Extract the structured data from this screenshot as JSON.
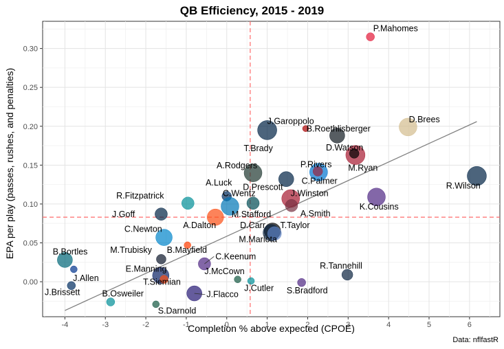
{
  "title": "QB Efficiency, 2015 - 2019",
  "caption": "Data: nflfastR",
  "chart_data": {
    "type": "scatter",
    "title": "QB Efficiency, 2015 - 2019",
    "xlabel": "Completion % above expected (CPOE)",
    "ylabel": "EPA per play (passes, rushes, and penalties)",
    "xlim": [
      -4.55,
      6.75
    ],
    "ylim": [
      -0.045,
      0.335
    ],
    "x_ticks": [
      -4,
      -3,
      -2,
      -1,
      0,
      1,
      2,
      3,
      4,
      5,
      6
    ],
    "y_ticks": [
      0.0,
      0.05,
      0.1,
      0.15,
      0.2,
      0.25,
      0.3
    ],
    "x_tick_labels": [
      "-4",
      "-3",
      "-2",
      "-1",
      "0",
      "1",
      "2",
      "3",
      "4",
      "5",
      "6"
    ],
    "y_tick_labels": [
      "0.00",
      "0.05",
      "0.10",
      "0.15",
      "0.20",
      "0.25",
      "0.30"
    ],
    "grid": true,
    "reference_lines": {
      "x_mean": 0.58,
      "y_mean": 0.083,
      "color": "#ff6b6b"
    },
    "trend_line": {
      "x": [
        -4.0,
        6.18
      ],
      "y": [
        -0.037,
        0.206
      ],
      "color": "#808080"
    },
    "points": [
      {
        "name": "P.Mahomes",
        "x": 3.55,
        "y": 0.315,
        "size": 6,
        "color": "#e31837",
        "label_pos": [
          3.62,
          0.322
        ],
        "anchor": "start"
      },
      {
        "name": "D.Brees",
        "x": 4.48,
        "y": 0.199,
        "size": 13,
        "color": "#d3bc8d",
        "label_pos": [
          4.5,
          0.205
        ],
        "anchor": "start"
      },
      {
        "name": "J.Garoppolo",
        "x": 1.95,
        "y": 0.197,
        "size": 4.5,
        "color": "#aa0000",
        "label_pos": [
          1.0,
          0.203
        ],
        "anchor": "start"
      },
      {
        "name": "T.Brady",
        "x": 1.0,
        "y": 0.195,
        "size": 14,
        "color": "#002244",
        "label_pos": [
          0.78,
          0.168
        ],
        "anchor": "middle"
      },
      {
        "name": "B.Roethlisberger",
        "x": 2.73,
        "y": 0.188,
        "size": 11,
        "color": "#101820",
        "label_pos": [
          1.97,
          0.193
        ],
        "anchor": "start"
      },
      {
        "name": "D.Watson",
        "x": 3.18,
        "y": 0.163,
        "size": 14,
        "color": "#a71930",
        "label_pos": [
          2.45,
          0.169
        ],
        "anchor": "start"
      },
      {
        "name": "M.Ryan",
        "x": 3.15,
        "y": 0.165,
        "size": 7,
        "color": "#000000",
        "label_pos": [
          3.0,
          0.143
        ],
        "anchor": "start"
      },
      {
        "name": "P.Rivers",
        "x": 2.27,
        "y": 0.141,
        "size": 13,
        "color": "#0073cf",
        "label_pos": [
          1.82,
          0.147
        ],
        "anchor": "start"
      },
      {
        "name": "C.Palmer",
        "x": 2.25,
        "y": 0.142,
        "size": 7,
        "color": "#97233f",
        "label_pos": [
          1.85,
          0.126
        ],
        "anchor": "start"
      },
      {
        "name": "A.Rodgers",
        "x": 0.65,
        "y": 0.14,
        "size": 13,
        "color": "#203731",
        "label_pos": [
          -0.25,
          0.146
        ],
        "anchor": "start"
      },
      {
        "name": "D.Prescott",
        "x": 1.47,
        "y": 0.132,
        "size": 11,
        "color": "#002244",
        "label_pos": [
          0.4,
          0.118
        ],
        "anchor": "start"
      },
      {
        "name": "R.Wilson",
        "x": 6.18,
        "y": 0.136,
        "size": 14,
        "color": "#002244",
        "label_pos": [
          5.42,
          0.12
        ],
        "anchor": "start"
      },
      {
        "name": "K.Cousins",
        "x": 3.7,
        "y": 0.109,
        "size": 13,
        "color": "#4f2683",
        "label_pos": [
          3.28,
          0.093
        ],
        "anchor": "start"
      },
      {
        "name": "J.Winston",
        "x": 1.58,
        "y": 0.107,
        "size": 13,
        "color": "#a71930",
        "label_pos": [
          1.58,
          0.11
        ],
        "anchor": "start"
      },
      {
        "name": "A.Smith",
        "x": 1.6,
        "y": 0.098,
        "size": 9,
        "color": "#773141",
        "label_pos": [
          1.82,
          0.084
        ],
        "anchor": "start"
      },
      {
        "name": "C.Wentz",
        "x": 0.65,
        "y": 0.101,
        "size": 9,
        "color": "#004c54",
        "label_pos": [
          -0.1,
          0.11
        ],
        "anchor": "start"
      },
      {
        "name": "A.Luck",
        "x": 0.0,
        "y": 0.11,
        "size": 7,
        "color": "#002c5f",
        "label_pos": [
          -0.52,
          0.124
        ],
        "anchor": "start"
      },
      {
        "name": "M.Stafford",
        "x": 0.08,
        "y": 0.097,
        "size": 13,
        "color": "#0076b6",
        "label_pos": [
          0.12,
          0.083
        ],
        "anchor": "start"
      },
      {
        "name": "A.Dalton",
        "x": -0.28,
        "y": 0.083,
        "size": 12,
        "color": "#fb4f14",
        "label_pos": [
          -1.08,
          0.069
        ],
        "anchor": "start"
      },
      {
        "name": "R.Fitzpatrick",
        "x": -0.96,
        "y": 0.101,
        "size": 9,
        "color": "#008e97",
        "label_pos": [
          -2.73,
          0.107
        ],
        "anchor": "start"
      },
      {
        "name": "J.Goff",
        "x": -1.62,
        "y": 0.087,
        "size": 9,
        "color": "#002244",
        "label_pos": [
          -2.27,
          0.083
        ],
        "anchor": "end"
      },
      {
        "name": "D.Carr",
        "x": 1.13,
        "y": 0.065,
        "size": 12,
        "color": "#000000",
        "label_pos": [
          0.33,
          0.069
        ],
        "anchor": "start"
      },
      {
        "name": "M.Mariota",
        "x": 1.1,
        "y": 0.063,
        "size": 12,
        "color": "#0c2340",
        "label_pos": [
          0.3,
          0.051
        ],
        "anchor": "start"
      },
      {
        "name": "T.Taylor",
        "x": 1.18,
        "y": 0.062,
        "size": 10,
        "color": "#5c82c3",
        "label_pos": [
          1.32,
          0.069
        ],
        "anchor": "start"
      },
      {
        "name": "C.Newton",
        "x": -1.55,
        "y": 0.057,
        "size": 12,
        "color": "#0085ca",
        "label_pos": [
          -2.53,
          0.064
        ],
        "anchor": "start"
      },
      {
        "name": "M.Trubisky",
        "x": -1.62,
        "y": 0.029,
        "size": 7,
        "color": "#0b162a",
        "label_pos": [
          -2.88,
          0.037
        ],
        "anchor": "start"
      },
      {
        "name": "B.Mayfield",
        "x": -0.97,
        "y": 0.047,
        "size": 5,
        "color": "#ff3c00",
        "label_pos": [
          -1.48,
          0.037
        ],
        "anchor": "start"
      },
      {
        "name": "C.Keenum",
        "x": -0.55,
        "y": 0.023,
        "size": 9,
        "color": "#4f2683",
        "label_pos": [
          -0.28,
          0.029
        ],
        "anchor": "start",
        "connector": true
      },
      {
        "name": "B.Bortles",
        "x": -4.0,
        "y": 0.028,
        "size": 11,
        "color": "#006778",
        "label_pos": [
          -4.3,
          0.035
        ],
        "anchor": "start"
      },
      {
        "name": "E.Manning",
        "x": -1.63,
        "y": 0.008,
        "size": 12,
        "color": "#0b2265",
        "label_pos": [
          -2.5,
          0.013
        ],
        "anchor": "start"
      },
      {
        "name": "J.McCown",
        "x": 0.27,
        "y": 0.003,
        "size": 5,
        "color": "#125740",
        "label_pos": [
          -0.55,
          0.01
        ],
        "anchor": "start"
      },
      {
        "name": "J.Allen",
        "x": -3.78,
        "y": 0.016,
        "size": 5,
        "color": "#00338d",
        "label_pos": [
          -3.8,
          0.001
        ],
        "anchor": "start"
      },
      {
        "name": "J.Brissett",
        "x": -3.84,
        "y": -0.005,
        "size": 6,
        "color": "#002c5f",
        "label_pos": [
          -4.5,
          -0.017
        ],
        "anchor": "start"
      },
      {
        "name": "T.Siemian",
        "x": -1.55,
        "y": 0.003,
        "size": 6,
        "color": "#fb4f14",
        "label_pos": [
          -2.07,
          -0.004
        ],
        "anchor": "start"
      },
      {
        "name": "J.Cutler",
        "x": 0.6,
        "y": 0.001,
        "size": 5,
        "color": "#008e97",
        "label_pos": [
          0.43,
          -0.012
        ],
        "anchor": "start"
      },
      {
        "name": "S.Bradford",
        "x": 1.85,
        "y": -0.001,
        "size": 6,
        "color": "#4f2683",
        "label_pos": [
          1.48,
          -0.015
        ],
        "anchor": "start"
      },
      {
        "name": "R.Tannehill",
        "x": 2.98,
        "y": 0.009,
        "size": 8,
        "color": "#0c2340",
        "label_pos": [
          2.3,
          0.017
        ],
        "anchor": "start"
      },
      {
        "name": "J.Flacco",
        "x": -0.8,
        "y": -0.015,
        "size": 11,
        "color": "#241773",
        "label_pos": [
          -0.5,
          -0.02
        ],
        "anchor": "start",
        "connector": true
      },
      {
        "name": "B.Osweiler",
        "x": -2.87,
        "y": -0.026,
        "size": 6,
        "color": "#008e97",
        "label_pos": [
          -3.08,
          -0.019
        ],
        "anchor": "start"
      },
      {
        "name": "S.Darnold",
        "x": -1.75,
        "y": -0.029,
        "size": 5,
        "color": "#125740",
        "label_pos": [
          -1.7,
          -0.041
        ],
        "anchor": "start"
      }
    ]
  }
}
